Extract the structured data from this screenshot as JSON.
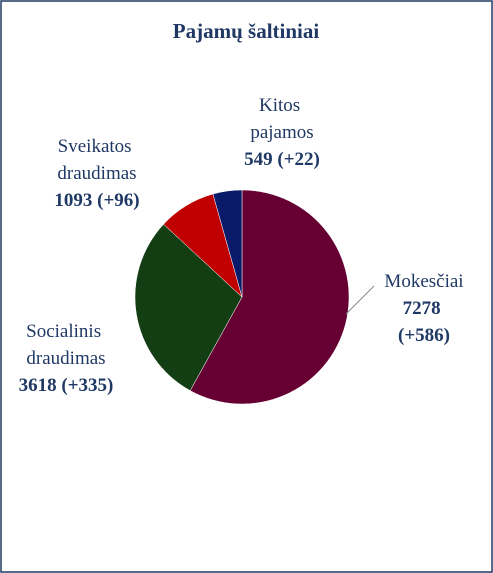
{
  "chart_data": {
    "type": "pie",
    "title": "Pajamų šaltiniai",
    "categories": [
      "Mokesčiai",
      "Socialinis draudimas",
      "Sveikatos draudimas",
      "Kitos pajamos"
    ],
    "values": [
      7278,
      3618,
      1093,
      549
    ],
    "value_labels": [
      "7278 (+586)",
      "3618 (+335)",
      "1093 (+96)",
      "549 (+22)"
    ],
    "colors": [
      "#660033",
      "#133d13",
      "#c00000",
      "#0a1a6a"
    ]
  }
}
